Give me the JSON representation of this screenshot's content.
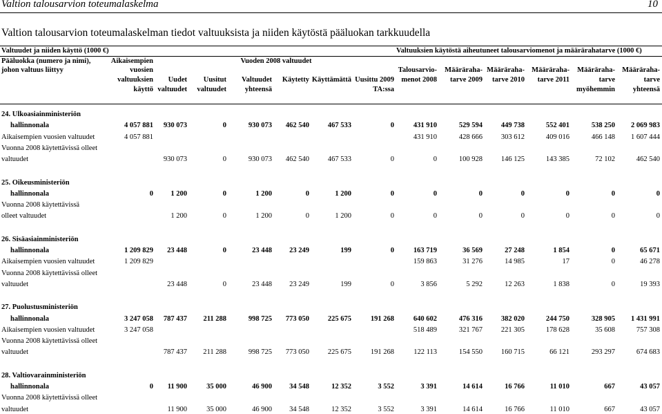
{
  "page": {
    "running_title": "Valtion talousarvion toteumalaskelma",
    "page_number": "10",
    "title": "Valtion talousarvion toteumalaskelman tiedot valtuuksista ja niiden käytöstä pääluokan tarkkuudella"
  },
  "table": {
    "group_left": "Valtuudet ja niiden käyttö (1000 €)",
    "group_right": "Valtuuksien käytöstä aiheutuneet talousarviomenot ja määrärahatarve (1000 €)",
    "col_main": [
      "Pääluokka (numero ja nimi),",
      "johon valtuus liittyy"
    ],
    "col_aik": [
      "Aikaisempien",
      "vuosien",
      "valtuuksien",
      "käyttö"
    ],
    "group_2008": "Vuoden 2008 valtuudet",
    "col_uudet": [
      "Uudet",
      "valtuudet"
    ],
    "col_uusitut": [
      "Uusitut",
      "valtuudet"
    ],
    "col_valtuudet": [
      "Valtuudet",
      "yhteensä"
    ],
    "col_kaytetty": "Käytetty",
    "col_kayttamatta": "Käyttämättä",
    "col_uusittu": [
      "Uusittu 2009",
      "TA:ssa"
    ],
    "col_talous": [
      "Talousarvio-",
      "menot 2008"
    ],
    "col_m2009": [
      "Määräraha-",
      "tarve 2009"
    ],
    "col_m2010": [
      "Määräraha-",
      "tarve 2010"
    ],
    "col_m2011": [
      "Määräraha-",
      "tarve 2011"
    ],
    "col_myoh": [
      "Määräraha-",
      "tarve",
      "myöhemmin"
    ],
    "col_yht": [
      "Määräraha-",
      "tarve",
      "yhteensä"
    ],
    "sections": [
      {
        "heading": "24. Ulkoasiainministeriön",
        "rows": [
          {
            "label": "hallinnonala",
            "bold": true,
            "values": [
              "4 057 881",
              "930 073",
              "0",
              "930 073",
              "462 540",
              "467 533",
              "0",
              "431 910",
              "529 594",
              "449 738",
              "552 401",
              "538 250",
              "2 069 983"
            ]
          },
          {
            "label": "Aikaisempien vuosien valtuudet",
            "bold": false,
            "values": [
              "4 057 881",
              "",
              "",
              "",
              "",
              "",
              "",
              "431 910",
              "428 666",
              "303 612",
              "409 016",
              "466 148",
              "1 607 444"
            ]
          },
          {
            "label": "Vuonna 2008 käytettävissä olleet",
            "bold": false,
            "values": []
          },
          {
            "label": "valtuudet",
            "bold": false,
            "values": [
              "",
              "930 073",
              "0",
              "930 073",
              "462 540",
              "467 533",
              "0",
              "0",
              "100 928",
              "146 125",
              "143 385",
              "72 102",
              "462 540"
            ]
          }
        ]
      },
      {
        "heading": "25. Oikeusministeriön",
        "rows": [
          {
            "label": "hallinnonala",
            "bold": true,
            "values": [
              "0",
              "1 200",
              "0",
              "1 200",
              "0",
              "1 200",
              "0",
              "0",
              "0",
              "0",
              "0",
              "0",
              "0"
            ]
          },
          {
            "label": "Vuonna 2008 käytettävissä",
            "bold": false,
            "values": []
          },
          {
            "label": "olleet valtuudet",
            "bold": false,
            "values": [
              "",
              "1 200",
              "0",
              "1 200",
              "0",
              "1 200",
              "0",
              "0",
              "0",
              "0",
              "0",
              "0",
              "0"
            ]
          }
        ]
      },
      {
        "heading": "26. Sisäasiainministeriön",
        "rows": [
          {
            "label": "hallinnonala",
            "bold": true,
            "values": [
              "1 209 829",
              "23 448",
              "0",
              "23 448",
              "23 249",
              "199",
              "0",
              "163 719",
              "36 569",
              "27 248",
              "1 854",
              "0",
              "65 671"
            ]
          },
          {
            "label": "Aikaisempien vuosien valtuudet",
            "bold": false,
            "values": [
              "1 209 829",
              "",
              "",
              "",
              "",
              "",
              "",
              "159 863",
              "31 276",
              "14 985",
              "17",
              "0",
              "46 278"
            ]
          },
          {
            "label": "Vuonna 2008 käytettävissä olleet",
            "bold": false,
            "values": []
          },
          {
            "label": "valtuudet",
            "bold": false,
            "values": [
              "",
              "23 448",
              "0",
              "23 448",
              "23 249",
              "199",
              "0",
              "3 856",
              "5 292",
              "12 263",
              "1 838",
              "0",
              "19 393"
            ]
          }
        ]
      },
      {
        "heading": "27. Puolustusministeriön",
        "rows": [
          {
            "label": "hallinnonala",
            "bold": true,
            "values": [
              "3 247 058",
              "787 437",
              "211 288",
              "998 725",
              "773 050",
              "225 675",
              "191 268",
              "640 602",
              "476 316",
              "382 020",
              "244 750",
              "328 905",
              "1 431 991"
            ]
          },
          {
            "label": "Aikaisempien vuosien valtuudet",
            "bold": false,
            "values": [
              "3 247 058",
              "",
              "",
              "",
              "",
              "",
              "",
              "518 489",
              "321 767",
              "221 305",
              "178 628",
              "35 608",
              "757 308"
            ]
          },
          {
            "label": "Vuonna 2008 käytettävissä olleet",
            "bold": false,
            "values": []
          },
          {
            "label": "valtuudet",
            "bold": false,
            "values": [
              "",
              "787 437",
              "211 288",
              "998 725",
              "773 050",
              "225 675",
              "191 268",
              "122 113",
              "154 550",
              "160 715",
              "66 121",
              "293 297",
              "674 683"
            ]
          }
        ]
      },
      {
        "heading": "28. Valtiovarainministeriön",
        "rows": [
          {
            "label": "hallinnonala",
            "bold": true,
            "values": [
              "0",
              "11 900",
              "35 000",
              "46 900",
              "34 548",
              "12 352",
              "3 552",
              "3 391",
              "14 614",
              "16 766",
              "11 010",
              "667",
              "43 057"
            ]
          },
          {
            "label": "Vuonna 2008 käytettävissä olleet",
            "bold": false,
            "values": []
          },
          {
            "label": "valtuudet",
            "bold": false,
            "values": [
              "",
              "11 900",
              "35 000",
              "46 900",
              "34 548",
              "12 352",
              "3 552",
              "3 391",
              "14 614",
              "16 766",
              "11 010",
              "667",
              "43 057"
            ]
          }
        ]
      }
    ]
  }
}
